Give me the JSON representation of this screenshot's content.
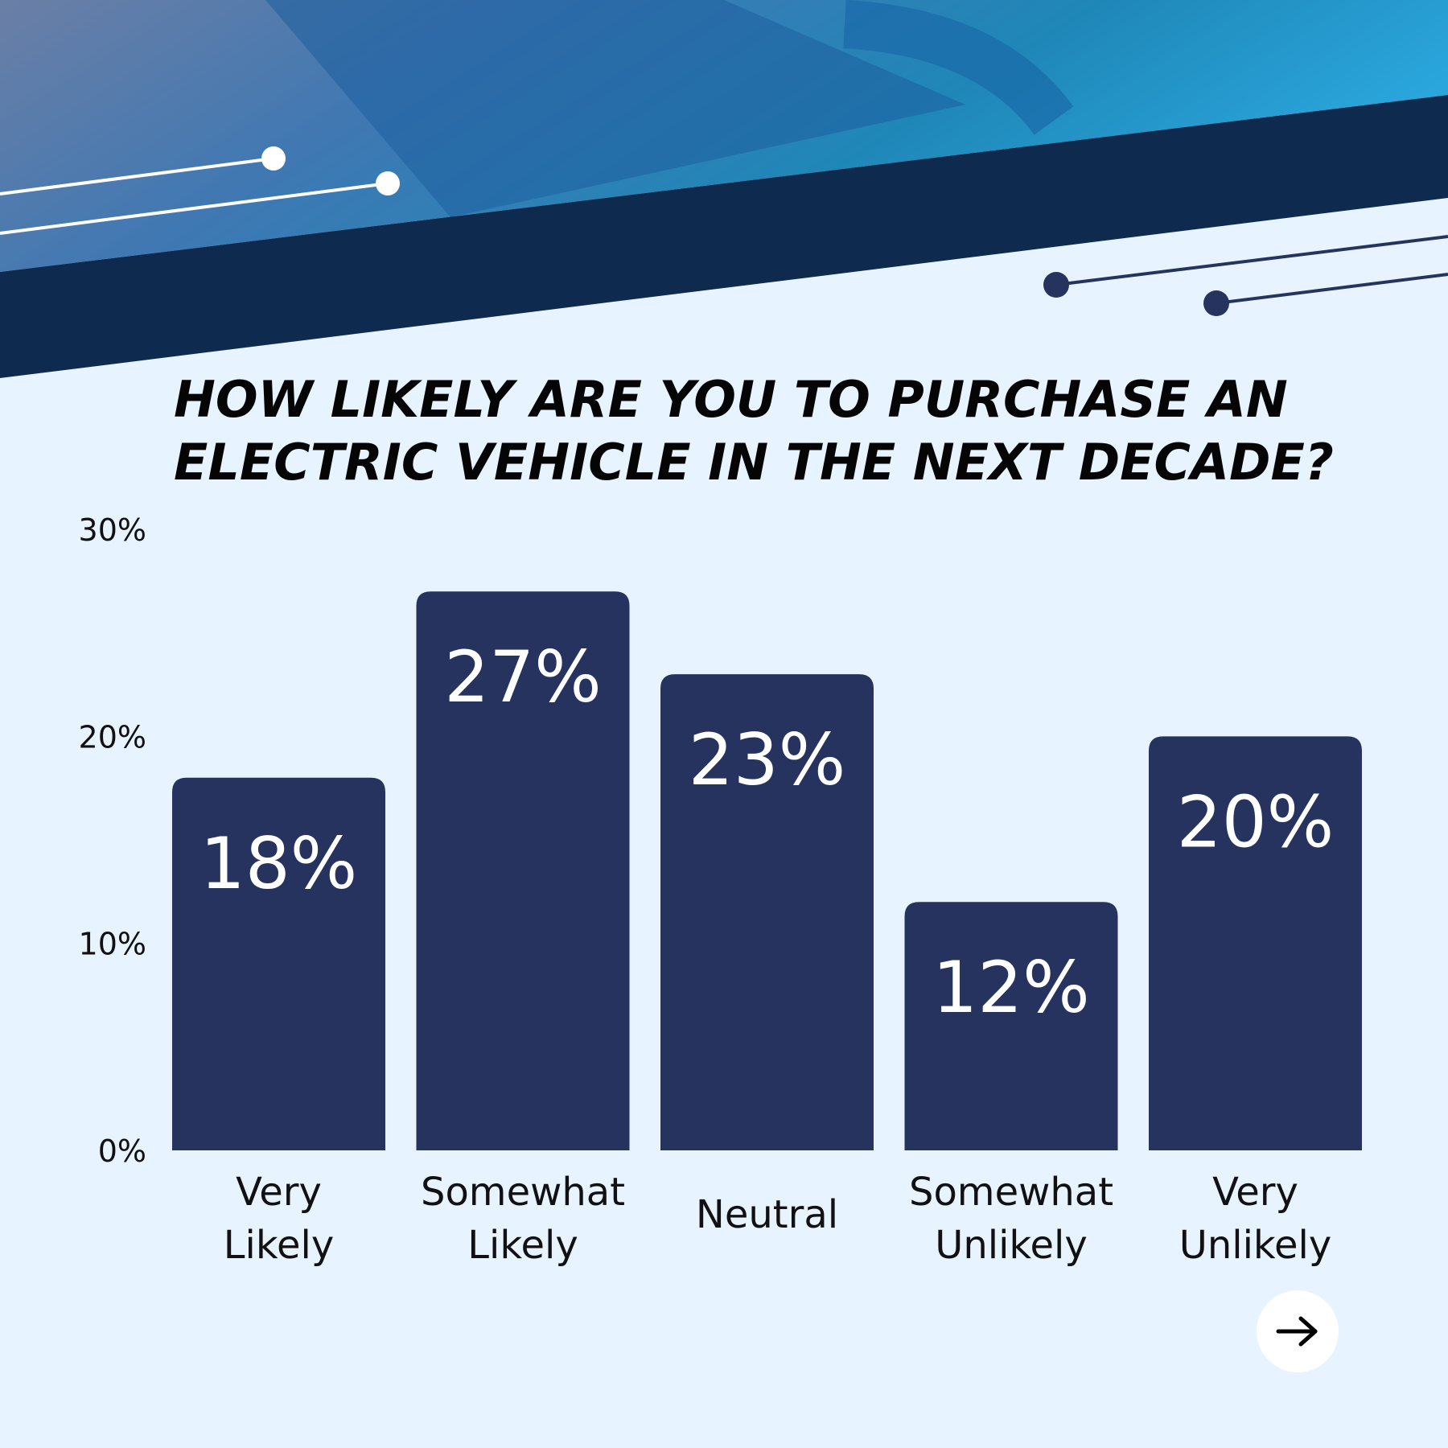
{
  "colors": {
    "background": "#e7f3fe",
    "bar": "#26335e",
    "navy_band": "#0f2a4f",
    "bar_label": "#ffffff",
    "text": "#111111"
  },
  "chart_data": {
    "type": "bar",
    "title": "HOW LIKELY ARE YOU TO PURCHASE AN ELECTRIC VEHICLE IN THE NEXT DECADE?",
    "title_lines": [
      "HOW LIKELY ARE YOU TO PURCHASE AN",
      "ELECTRIC VEHICLE IN THE NEXT DECADE?"
    ],
    "categories": [
      [
        "Very",
        "Likely"
      ],
      [
        "Somewhat",
        "Likely"
      ],
      [
        "Neutral"
      ],
      [
        "Somewhat",
        "Unlikely"
      ],
      [
        "Very",
        "Unlikely"
      ]
    ],
    "values": [
      18,
      27,
      23,
      12,
      20
    ],
    "data_labels": [
      "18%",
      "27%",
      "23%",
      "12%",
      "20%"
    ],
    "ylim": [
      0,
      30
    ],
    "yticks": [
      0,
      10,
      20,
      30
    ],
    "ytick_labels": [
      "0%",
      "10%",
      "20%",
      "30%"
    ],
    "grid": false,
    "xlabel": "",
    "ylabel": ""
  },
  "navigation": {
    "next_icon": "arrow-right-icon"
  }
}
